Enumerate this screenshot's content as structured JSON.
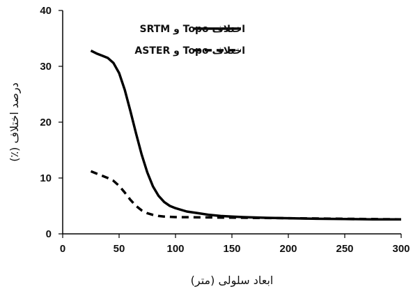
{
  "chart_data": {
    "type": "line",
    "xlabel": "ابعاد سلولی (متر)",
    "ylabel": "درصد اختلاف (٪)",
    "xlim": [
      0,
      300
    ],
    "ylim": [
      0,
      40
    ],
    "xticks": [
      "0",
      "50",
      "100",
      "150",
      "200",
      "250",
      "300"
    ],
    "yticks": [
      "0",
      "10",
      "20",
      "30",
      "40"
    ],
    "grid": false,
    "legend_position": "top-right",
    "series": [
      {
        "name": "اختلاف Topo و SRTM",
        "style": "solid",
        "color": "#000000",
        "x": [
          25,
          30,
          35,
          40,
          45,
          50,
          55,
          60,
          65,
          70,
          75,
          80,
          85,
          90,
          95,
          100,
          110,
          120,
          130,
          140,
          150,
          160,
          175,
          200,
          225,
          250,
          275,
          300
        ],
        "y": [
          32.8,
          32.3,
          31.9,
          31.5,
          30.6,
          28.8,
          25.8,
          22.0,
          18.0,
          14.2,
          11.0,
          8.5,
          6.8,
          5.7,
          5.0,
          4.6,
          4.0,
          3.7,
          3.4,
          3.2,
          3.1,
          3.0,
          2.9,
          2.8,
          2.7,
          2.65,
          2.6,
          2.6
        ]
      },
      {
        "name": "اختلاف Topo و ASTER",
        "style": "dashed",
        "color": "#000000",
        "x": [
          25,
          30,
          35,
          40,
          45,
          50,
          55,
          60,
          65,
          70,
          75,
          80,
          85,
          90,
          100,
          125,
          150,
          200,
          250,
          300
        ],
        "y": [
          11.2,
          10.8,
          10.4,
          10.0,
          9.5,
          8.6,
          7.4,
          6.1,
          5.0,
          4.2,
          3.7,
          3.4,
          3.2,
          3.1,
          3.0,
          2.95,
          2.9,
          2.8,
          2.7,
          2.6
        ]
      }
    ]
  }
}
